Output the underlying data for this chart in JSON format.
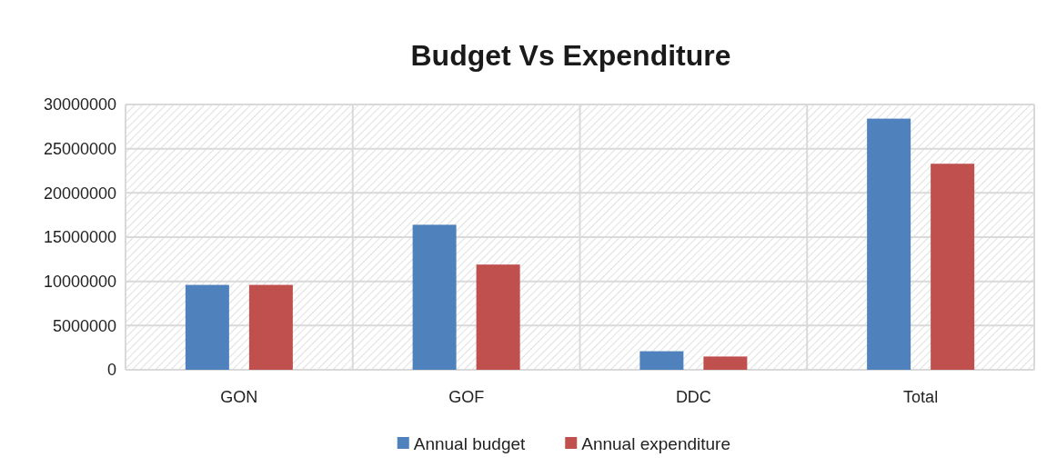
{
  "chart_data": {
    "type": "bar",
    "title": "Budget Vs Expenditure",
    "categories": [
      "GON",
      "GOF",
      "DDC",
      "Total"
    ],
    "series": [
      {
        "name": "Annual budget",
        "color": "#4f81bd",
        "values": [
          9600000,
          16400000,
          2100000,
          28400000
        ]
      },
      {
        "name": "Annual expenditure",
        "color": "#c0504d",
        "values": [
          9600000,
          11900000,
          1500000,
          23300000
        ]
      }
    ],
    "ylim": [
      0,
      30000000
    ],
    "yticks": [
      0,
      5000000,
      10000000,
      15000000,
      20000000,
      25000000,
      30000000
    ],
    "grid": true,
    "legend": "bottom"
  }
}
